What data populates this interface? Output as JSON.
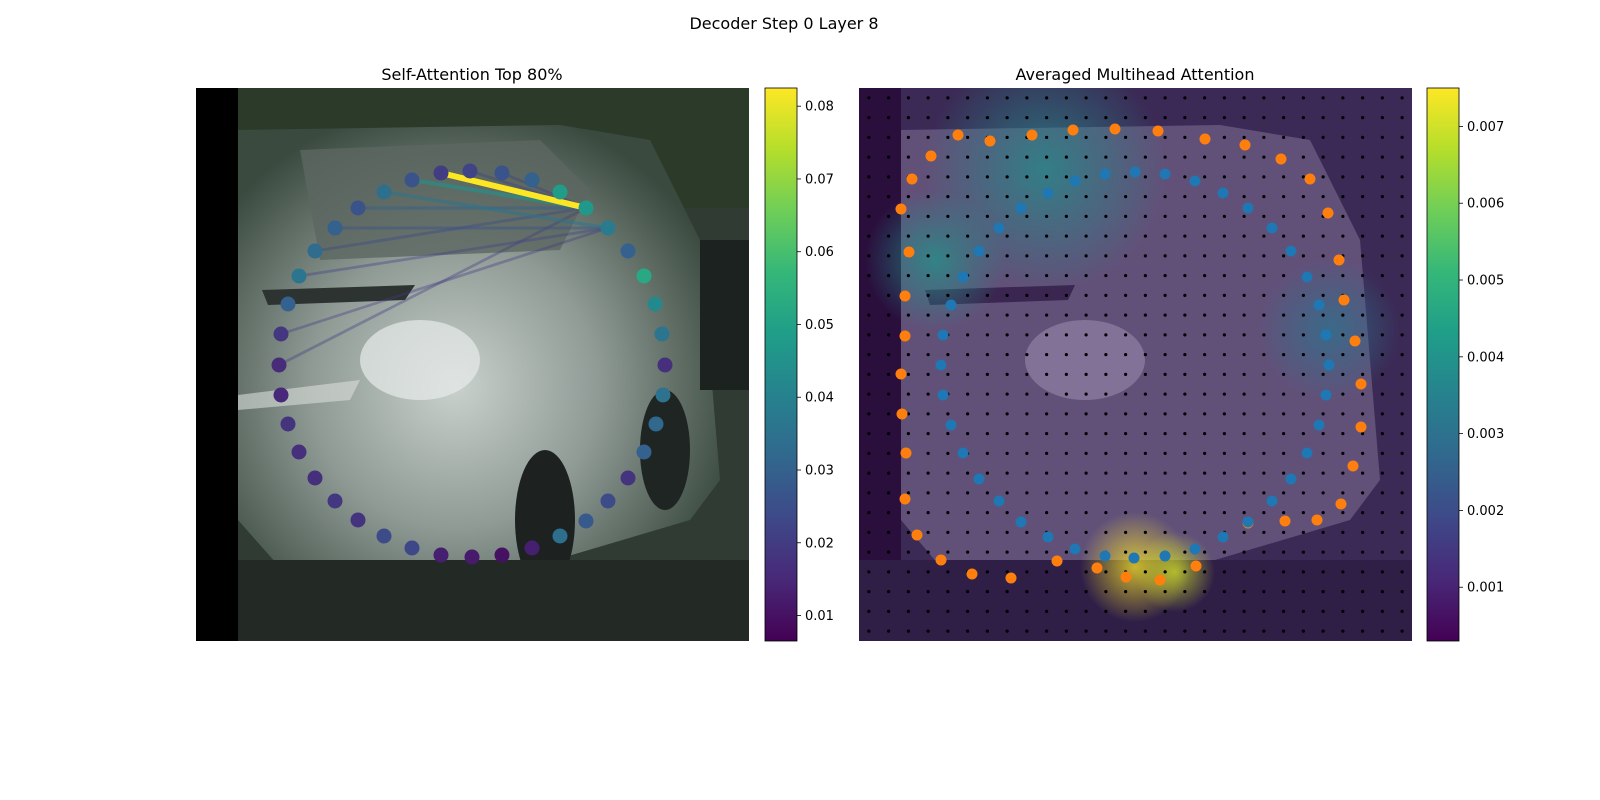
{
  "figure": {
    "suptitle": "Decoder Step 0 Layer 8",
    "colors": {
      "viridis": [
        "#440154",
        "#482878",
        "#3e4989",
        "#31688e",
        "#26828e",
        "#1f9e89",
        "#35b779",
        "#6ece58",
        "#b5de2b",
        "#fde725"
      ],
      "ring_blue": "#1f77b4",
      "ring_orange": "#ff7f0e",
      "grid_point": "#000000"
    }
  },
  "chart_data": [
    {
      "type": "scatter",
      "title": "Self-Attention Top 80%",
      "background": "photo of a silver van",
      "colorbar": {
        "range": [
          0.0065,
          0.0825
        ],
        "ticks": [
          0.01,
          0.02,
          0.03,
          0.04,
          0.05,
          0.06,
          0.07,
          0.08
        ],
        "tick_labels": [
          "0.01",
          "0.02",
          "0.03",
          "0.04",
          "0.05",
          "0.06",
          "0.07",
          "0.08"
        ],
        "colormap": "viridis"
      },
      "points": {
        "x": [
          470,
          502,
          532,
          560,
          586,
          608,
          628,
          644,
          655,
          662,
          665,
          663,
          656,
          644,
          628,
          608,
          586,
          560,
          532,
          502,
          472,
          441,
          412,
          384,
          358,
          335,
          315,
          299,
          288,
          281,
          279,
          281,
          288,
          299,
          315,
          335,
          358,
          384,
          412,
          441
        ],
        "y": [
          171,
          173,
          180,
          192,
          208,
          228,
          251,
          276,
          304,
          334,
          365,
          395,
          424,
          452,
          478,
          501,
          521,
          536,
          548,
          555,
          557,
          555,
          548,
          536,
          520,
          501,
          478,
          452,
          424,
          395,
          365,
          334,
          304,
          276,
          251,
          228,
          208,
          192,
          180,
          173
        ],
        "attention": [
          0.022,
          0.026,
          0.03,
          0.048,
          0.047,
          0.038,
          0.03,
          0.052,
          0.042,
          0.036,
          0.017,
          0.035,
          0.032,
          0.03,
          0.018,
          0.024,
          0.028,
          0.034,
          0.013,
          0.01,
          0.012,
          0.013,
          0.023,
          0.024,
          0.018,
          0.019,
          0.017,
          0.017,
          0.018,
          0.015,
          0.016,
          0.019,
          0.03,
          0.036,
          0.033,
          0.03,
          0.026,
          0.034,
          0.026,
          0.02
        ]
      },
      "attention_lines": [
        {
          "from": 39,
          "to": 4,
          "weight": 0.0825
        },
        {
          "from": 38,
          "to": 4,
          "weight": 0.045
        },
        {
          "from": 37,
          "to": 5,
          "weight": 0.036
        },
        {
          "from": 36,
          "to": 4,
          "weight": 0.03
        },
        {
          "from": 35,
          "to": 5,
          "weight": 0.026
        },
        {
          "from": 34,
          "to": 4,
          "weight": 0.024
        },
        {
          "from": 33,
          "to": 5,
          "weight": 0.022
        },
        {
          "from": 0,
          "to": 4,
          "weight": 0.021
        },
        {
          "from": 1,
          "to": 4,
          "weight": 0.02
        },
        {
          "from": 30,
          "to": 4,
          "weight": 0.02
        },
        {
          "from": 31,
          "to": 5,
          "weight": 0.019
        }
      ]
    },
    {
      "type": "heatmap",
      "title": "Averaged Multihead Attention",
      "background": "photo of a silver van, darkened",
      "colorbar": {
        "range": [
          0.0003,
          0.0075
        ],
        "ticks": [
          0.001,
          0.002,
          0.003,
          0.004,
          0.005,
          0.006,
          0.007
        ],
        "tick_labels": [
          "0.001",
          "0.002",
          "0.003",
          "0.004",
          "0.005",
          "0.006",
          "0.007"
        ],
        "colormap": "viridis"
      },
      "grid": {
        "cols": 28,
        "rows": 28
      },
      "heat_blobs": [
        {
          "cx": 1135,
          "cy": 567,
          "r": 55,
          "value": 0.0075
        },
        {
          "cx": 1175,
          "cy": 572,
          "r": 40,
          "value": 0.007
        },
        {
          "cx": 935,
          "cy": 260,
          "r": 70,
          "value": 0.004
        },
        {
          "cx": 1045,
          "cy": 170,
          "r": 120,
          "value": 0.0038
        },
        {
          "cx": 1330,
          "cy": 330,
          "r": 70,
          "value": 0.003
        }
      ],
      "series": [
        {
          "color": "ring_orange",
          "x": [
            1115,
            1158,
            1205,
            1245,
            1281,
            1310,
            1328,
            1339,
            1344,
            1355,
            1361,
            1361,
            1353,
            1341,
            1317,
            1285,
            1248,
            1196,
            1160,
            1126,
            1097,
            1057,
            1011,
            972,
            941,
            917,
            905,
            906,
            902,
            901,
            905,
            905,
            909,
            901,
            912,
            931,
            958,
            990,
            1032,
            1073
          ],
          "y": [
            129,
            131,
            139,
            145,
            159,
            179,
            213,
            260,
            300,
            341,
            384,
            427,
            466,
            504,
            520,
            521,
            523,
            566,
            580,
            577,
            568,
            561,
            578,
            574,
            560,
            535,
            499,
            453,
            414,
            374,
            336,
            296,
            252,
            209,
            179,
            156,
            135,
            141,
            135,
            130
          ]
        },
        {
          "color": "ring_blue",
          "x": [
            1135,
            1165,
            1195,
            1223,
            1248,
            1272,
            1291,
            1307,
            1319,
            1326,
            1329,
            1326,
            1319,
            1307,
            1291,
            1272,
            1248,
            1223,
            1195,
            1165,
            1134,
            1105,
            1075,
            1048,
            1021,
            999,
            979,
            963,
            951,
            943,
            941,
            943,
            951,
            963,
            979,
            999,
            1021,
            1048,
            1075,
            1105
          ],
          "y": [
            172,
            174,
            181,
            193,
            208,
            228,
            251,
            277,
            305,
            335,
            365,
            395,
            425,
            453,
            479,
            501,
            522,
            537,
            549,
            556,
            558,
            556,
            549,
            537,
            522,
            501,
            479,
            453,
            425,
            395,
            365,
            335,
            305,
            277,
            251,
            228,
            208,
            193,
            181,
            174
          ]
        }
      ]
    }
  ]
}
